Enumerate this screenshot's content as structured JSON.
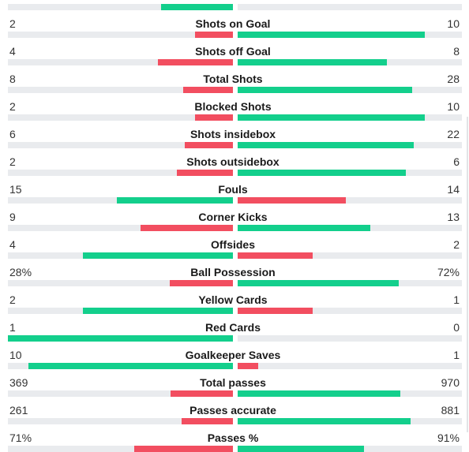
{
  "colors": {
    "greater": "#13cf8c",
    "lesser": "#f24e60",
    "track": "#e9ebee"
  },
  "stats": [
    {
      "label": "",
      "home": "",
      "away": "",
      "home_fill": 0.32,
      "away_fill": 0.0,
      "home_color": "greater",
      "away_color": "lesser"
    },
    {
      "label": "Shots on Goal",
      "home": "2",
      "away": "10",
      "home_fill": 0.167,
      "away_fill": 0.833,
      "home_color": "lesser",
      "away_color": "greater"
    },
    {
      "label": "Shots off Goal",
      "home": "4",
      "away": "8",
      "home_fill": 0.333,
      "away_fill": 0.667,
      "home_color": "lesser",
      "away_color": "greater"
    },
    {
      "label": "Total Shots",
      "home": "8",
      "away": "28",
      "home_fill": 0.222,
      "away_fill": 0.778,
      "home_color": "lesser",
      "away_color": "greater"
    },
    {
      "label": "Blocked Shots",
      "home": "2",
      "away": "10",
      "home_fill": 0.167,
      "away_fill": 0.833,
      "home_color": "lesser",
      "away_color": "greater"
    },
    {
      "label": "Shots insidebox",
      "home": "6",
      "away": "22",
      "home_fill": 0.214,
      "away_fill": 0.786,
      "home_color": "lesser",
      "away_color": "greater"
    },
    {
      "label": "Shots outsidebox",
      "home": "2",
      "away": "6",
      "home_fill": 0.25,
      "away_fill": 0.75,
      "home_color": "lesser",
      "away_color": "greater"
    },
    {
      "label": "Fouls",
      "home": "15",
      "away": "14",
      "home_fill": 0.517,
      "away_fill": 0.483,
      "home_color": "greater",
      "away_color": "lesser"
    },
    {
      "label": "Corner Kicks",
      "home": "9",
      "away": "13",
      "home_fill": 0.409,
      "away_fill": 0.591,
      "home_color": "lesser",
      "away_color": "greater"
    },
    {
      "label": "Offsides",
      "home": "4",
      "away": "2",
      "home_fill": 0.667,
      "away_fill": 0.333,
      "home_color": "greater",
      "away_color": "lesser"
    },
    {
      "label": "Ball Possession",
      "home": "28%",
      "away": "72%",
      "home_fill": 0.28,
      "away_fill": 0.72,
      "home_color": "lesser",
      "away_color": "greater"
    },
    {
      "label": "Yellow Cards",
      "home": "2",
      "away": "1",
      "home_fill": 0.667,
      "away_fill": 0.333,
      "home_color": "greater",
      "away_color": "lesser"
    },
    {
      "label": "Red Cards",
      "home": "1",
      "away": "0",
      "home_fill": 1.0,
      "away_fill": 0.0,
      "home_color": "greater",
      "away_color": "lesser"
    },
    {
      "label": "Goalkeeper Saves",
      "home": "10",
      "away": "1",
      "home_fill": 0.909,
      "away_fill": 0.091,
      "home_color": "greater",
      "away_color": "lesser"
    },
    {
      "label": "Total passes",
      "home": "369",
      "away": "970",
      "home_fill": 0.276,
      "away_fill": 0.724,
      "home_color": "lesser",
      "away_color": "greater"
    },
    {
      "label": "Passes accurate",
      "home": "261",
      "away": "881",
      "home_fill": 0.229,
      "away_fill": 0.771,
      "home_color": "lesser",
      "away_color": "greater"
    },
    {
      "label": "Passes %",
      "home": "71%",
      "away": "91%",
      "home_fill": 0.438,
      "away_fill": 0.562,
      "home_color": "lesser",
      "away_color": "greater"
    }
  ]
}
